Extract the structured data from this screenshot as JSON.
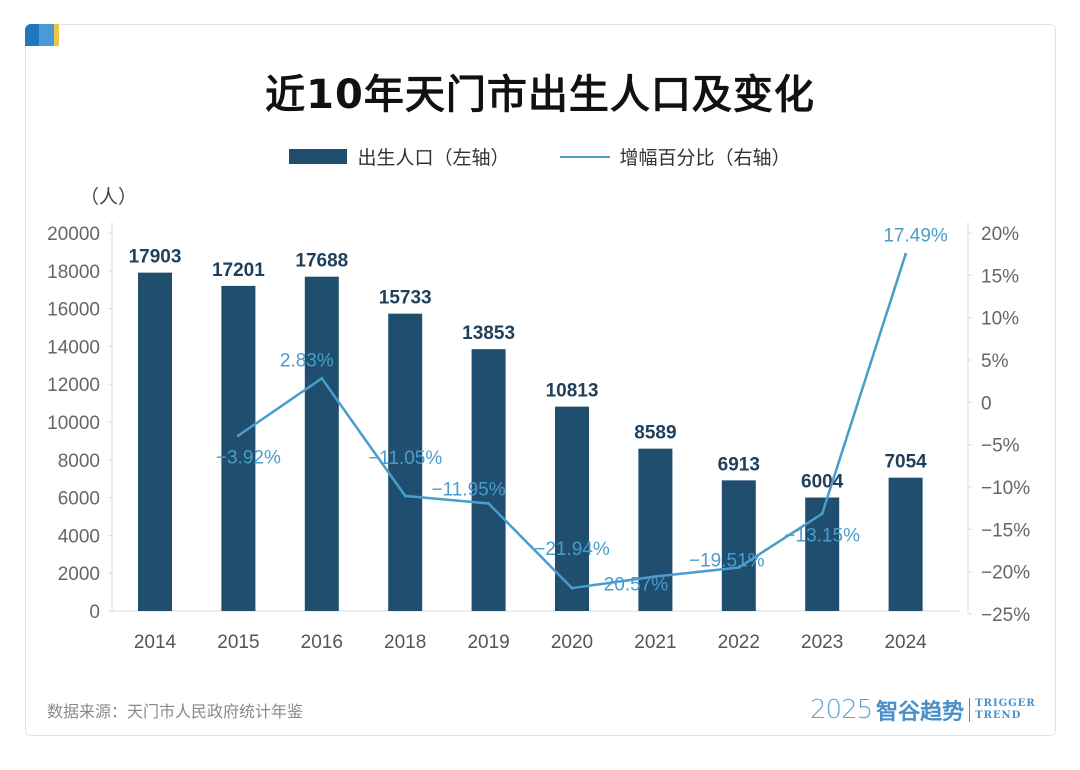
{
  "colors": {
    "bar": "#1f4e6e",
    "line": "#4a9ccc",
    "accent": [
      "#1f78bd",
      "#4a9ad6",
      "#e8c84a"
    ]
  },
  "chart_data": {
    "type": "bar+line",
    "title": "近10年天门市出生人口及变化",
    "left_unit": "（人）",
    "categories": [
      "2014",
      "2015",
      "2016",
      "2018",
      "2019",
      "2020",
      "2021",
      "2022",
      "2023",
      "2024"
    ],
    "series": [
      {
        "name": "出生人口（左轴）",
        "type": "bar",
        "axis": "left",
        "values": [
          17903,
          17201,
          17688,
          15733,
          13853,
          10813,
          8589,
          6913,
          6004,
          7054
        ]
      },
      {
        "name": "增幅百分比（右轴）",
        "type": "line",
        "axis": "right",
        "values": [
          null,
          -3.92,
          2.83,
          -11.05,
          -11.95,
          -21.94,
          -20.57,
          -19.51,
          -13.15,
          17.49
        ]
      }
    ],
    "left_ylim": [
      0,
      20000
    ],
    "left_ticks": [
      "0",
      "2000",
      "4000",
      "6000",
      "8000",
      "10000",
      "12000",
      "14000",
      "16000",
      "18000",
      "20000"
    ],
    "right_ylim": [
      -25,
      20
    ],
    "right_ticks": [
      "−25%",
      "−20%",
      "−15%",
      "−10%",
      "−5%",
      "0",
      "5%",
      "10%",
      "15%",
      "20%"
    ],
    "line_labels": [
      "",
      "−3.92%",
      "2.83%",
      "−11.05%",
      "−11.95%",
      "−21.94%",
      "−20.57%",
      "−19.51%",
      "−13.15%",
      "17.49%"
    ],
    "legend": "top-center",
    "grid": false
  },
  "footer": {
    "source": "数据来源：天门市人民政府统计年鉴",
    "logo_year": "2025",
    "logo_cn": "智谷趋势",
    "logo_en1": "TRIGGER",
    "logo_en2": "TREND"
  }
}
